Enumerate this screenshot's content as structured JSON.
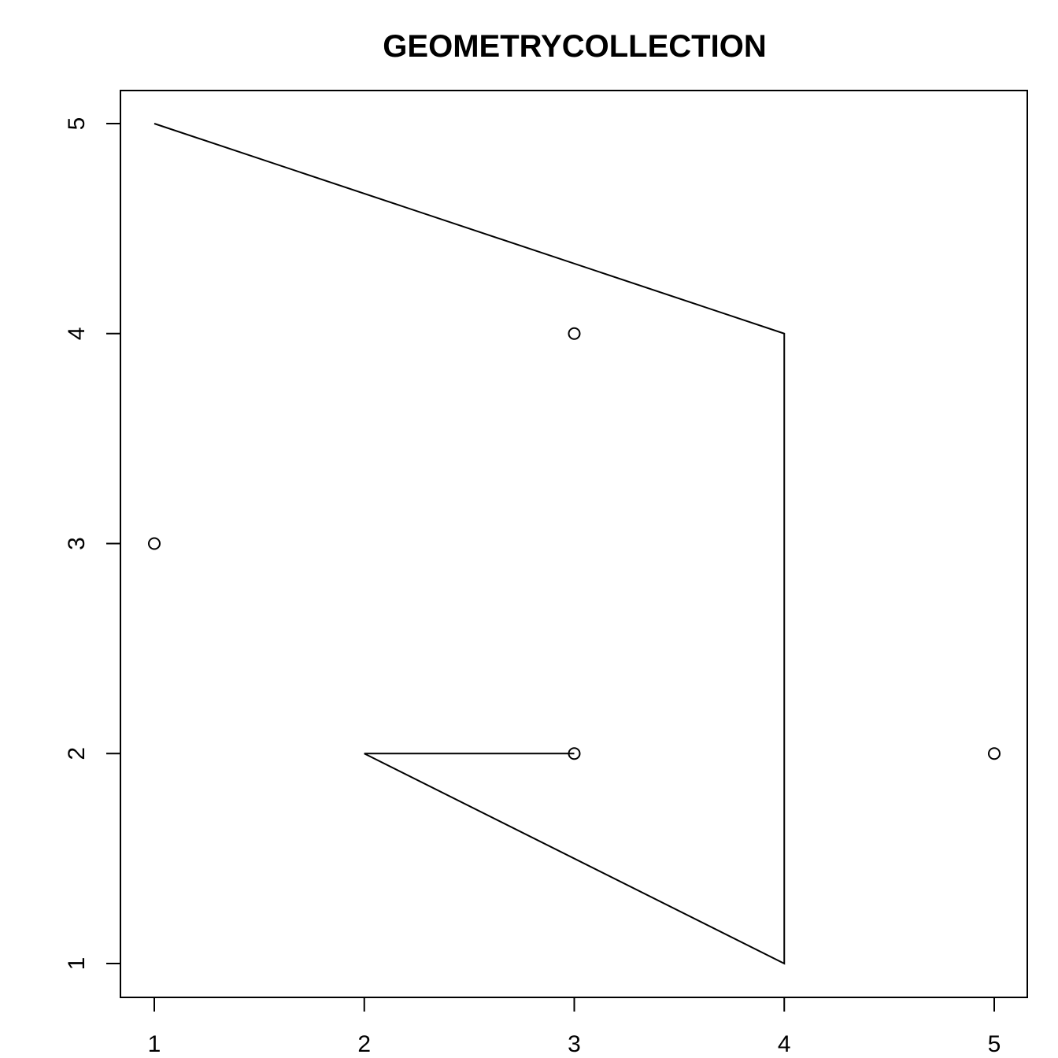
{
  "chart_data": {
    "type": "scatter",
    "title": "GEOMETRYCOLLECTION",
    "xlabel": "",
    "ylabel": "",
    "xlim": [
      1,
      5
    ],
    "ylim": [
      1,
      5
    ],
    "xticks": [
      1,
      2,
      3,
      4,
      5
    ],
    "yticks": [
      1,
      2,
      3,
      4,
      5
    ],
    "grid": false,
    "points": [
      {
        "x": 3,
        "y": 4
      },
      {
        "x": 1,
        "y": 3
      },
      {
        "x": 3,
        "y": 2
      },
      {
        "x": 5,
        "y": 2
      }
    ],
    "lines": [
      {
        "coords": [
          [
            1,
            5
          ],
          [
            4,
            4
          ],
          [
            4,
            1
          ],
          [
            2,
            2
          ],
          [
            3,
            2
          ]
        ]
      }
    ]
  }
}
